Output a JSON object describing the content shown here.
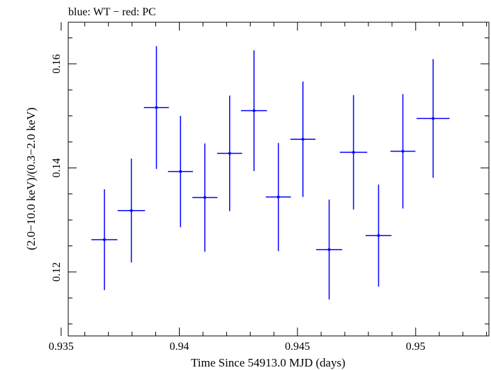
{
  "chart_data": {
    "type": "scatter",
    "title": "blue: WT − red: PC",
    "xlabel": "Time Since 54913.0 MJD (days)",
    "ylabel": "(2.0−10.0 keV)/(0.3−2.0 keV)",
    "xlim": [
      0.9353,
      0.9531
    ],
    "ylim": [
      0.1077,
      0.168
    ],
    "x_ticks": [
      0.935,
      0.94,
      0.945,
      0.95
    ],
    "x_tick_labels": [
      "0.935",
      "0.94",
      "0.945",
      "0.95"
    ],
    "y_ticks": [
      0.12,
      0.14,
      0.16
    ],
    "y_tick_labels": [
      "0.12",
      "0.14",
      "0.16"
    ],
    "grid": false,
    "series": [
      {
        "color": "#0000ff",
        "points": [
          {
            "x": 0.93683,
            "xerr": 0.00055,
            "y": 0.1262,
            "yerr": 0.0097
          },
          {
            "x": 0.93797,
            "xerr": 0.00058,
            "y": 0.1318,
            "yerr": 0.01
          },
          {
            "x": 0.93903,
            "xerr": 0.00053,
            "y": 0.1516,
            "yerr": 0.0118
          },
          {
            "x": 0.94005,
            "xerr": 0.00053,
            "y": 0.1393,
            "yerr": 0.0107
          },
          {
            "x": 0.94108,
            "xerr": 0.00053,
            "y": 0.1343,
            "yerr": 0.0104
          },
          {
            "x": 0.94213,
            "xerr": 0.00053,
            "y": 0.1428,
            "yerr": 0.0111
          },
          {
            "x": 0.94316,
            "xerr": 0.00055,
            "y": 0.151,
            "yerr": 0.0116
          },
          {
            "x": 0.94419,
            "xerr": 0.00053,
            "y": 0.1344,
            "yerr": 0.0104
          },
          {
            "x": 0.94523,
            "xerr": 0.00053,
            "y": 0.1455,
            "yerr": 0.0111
          },
          {
            "x": 0.94634,
            "xerr": 0.00055,
            "y": 0.1243,
            "yerr": 0.0096
          },
          {
            "x": 0.94737,
            "xerr": 0.00058,
            "y": 0.143,
            "yerr": 0.011
          },
          {
            "x": 0.94843,
            "xerr": 0.00055,
            "y": 0.127,
            "yerr": 0.0098
          },
          {
            "x": 0.94946,
            "xerr": 0.00053,
            "y": 0.1432,
            "yerr": 0.011
          },
          {
            "x": 0.95074,
            "xerr": 0.0007,
            "y": 0.1495,
            "yerr": 0.0114
          }
        ]
      }
    ]
  }
}
